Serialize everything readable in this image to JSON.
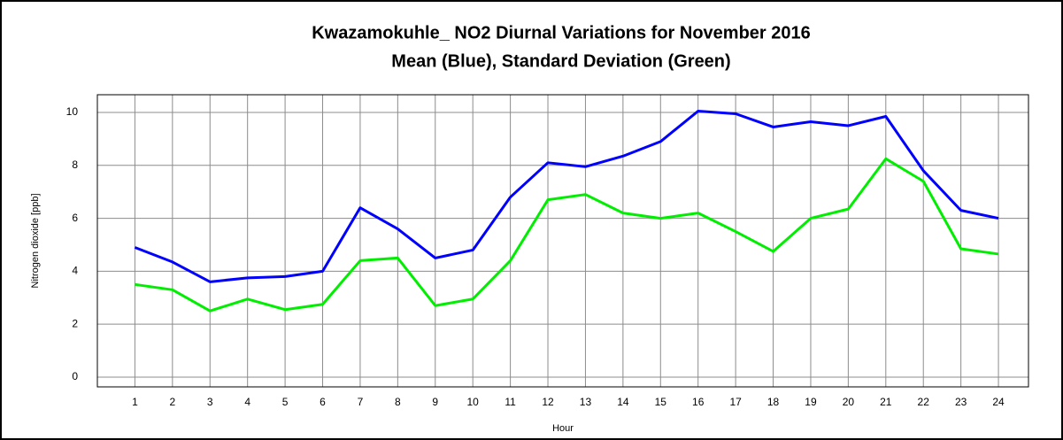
{
  "chart_data": {
    "type": "line",
    "title": "Kwazamokuhle_  NO2 Diurnal Variations for November 2016",
    "subtitle": "Mean (Blue), Standard Deviation (Green)",
    "x_label": "Hour",
    "y_label": "Nitrogen dioxide  [ppb]",
    "x": [
      1,
      2,
      3,
      4,
      5,
      6,
      7,
      8,
      9,
      10,
      11,
      12,
      13,
      14,
      15,
      16,
      17,
      18,
      19,
      20,
      21,
      22,
      23,
      24
    ],
    "xlim": [
      0,
      24.8
    ],
    "xticks": [
      1,
      2,
      3,
      4,
      5,
      6,
      7,
      8,
      9,
      10,
      11,
      12,
      13,
      14,
      15,
      16,
      17,
      18,
      19,
      20,
      21,
      22,
      23,
      24
    ],
    "ylim": [
      -0.37,
      10.67
    ],
    "yticks": [
      0,
      2,
      4,
      6,
      8,
      10
    ],
    "grid": true,
    "series": [
      {
        "name": "Mean",
        "color": "#0000ff",
        "values": [
          4.9,
          4.35,
          3.6,
          3.75,
          3.8,
          4.0,
          6.4,
          5.6,
          4.5,
          4.8,
          6.8,
          8.1,
          7.95,
          8.35,
          8.9,
          10.05,
          9.95,
          9.45,
          9.65,
          9.5,
          9.85,
          7.8,
          6.3,
          6.0
        ]
      },
      {
        "name": "Standard Deviation",
        "color": "#00ee00",
        "values": [
          3.5,
          3.3,
          2.5,
          2.95,
          2.55,
          2.75,
          4.4,
          4.5,
          2.7,
          2.95,
          4.4,
          6.7,
          6.9,
          6.2,
          6.0,
          6.2,
          5.5,
          4.75,
          6.0,
          6.35,
          8.25,
          7.4,
          4.85,
          4.65
        ]
      }
    ]
  }
}
